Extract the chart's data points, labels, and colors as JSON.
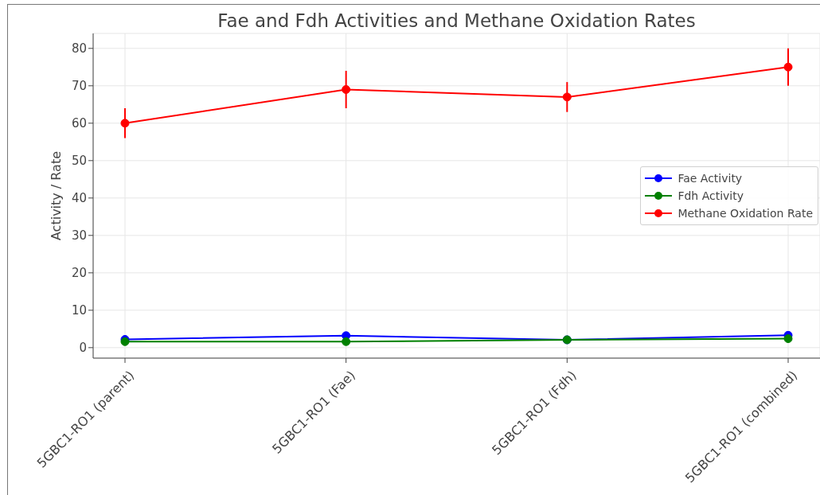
{
  "chart_data": {
    "type": "line",
    "title": "Fae and Fdh Activities and Methane Oxidation Rates",
    "ylabel": "Activity / Rate",
    "categories": [
      "5GBC1-RO1 (parent)",
      "5GBC1-RO1 (Fae)",
      "5GBC1-RO1 (Fdh)",
      "5GBC1-RO1 (combined)"
    ],
    "series": [
      {
        "name": "Fae Activity",
        "color": "#0000ff",
        "values": [
          2.2,
          3.2,
          2.1,
          3.3
        ]
      },
      {
        "name": "Fdh Activity",
        "color": "#008000",
        "values": [
          1.6,
          1.6,
          2.1,
          2.4
        ]
      },
      {
        "name": "Methane Oxidation Rate",
        "color": "#ff0000",
        "values": [
          60,
          69,
          67,
          75
        ],
        "errors": [
          4,
          5,
          4,
          5
        ]
      }
    ],
    "ylim": [
      -2.8,
      84
    ],
    "yticks": [
      0,
      10,
      20,
      30,
      40,
      50,
      60,
      70,
      80
    ],
    "grid": true,
    "legend": "right",
    "marker": "circle",
    "line_style": "solid"
  }
}
